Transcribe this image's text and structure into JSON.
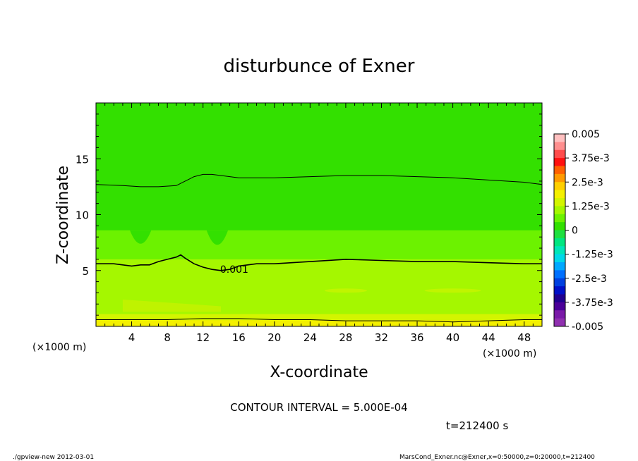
{
  "chart_data": {
    "type": "heatmap",
    "title": "disturbunce of Exner",
    "xlabel": "X-coordinate",
    "ylabel": "Z-coordinate",
    "x_unit": "(×1000 m)",
    "xlim": [
      0,
      50
    ],
    "ylim": [
      0,
      20
    ],
    "x_ticks": [
      4,
      8,
      12,
      16,
      20,
      24,
      28,
      32,
      36,
      40,
      44,
      48
    ],
    "y_ticks": [
      5,
      10,
      15
    ],
    "contour_labels": [
      {
        "text": "0.001",
        "x": 15.5,
        "z": 5.1
      }
    ],
    "contours": [
      {
        "level": "upper",
        "x": [
          0,
          3,
          5,
          7,
          9,
          9.5,
          10,
          10.5,
          11,
          12,
          13,
          14,
          16,
          20,
          24,
          28,
          32,
          36,
          40,
          44,
          48,
          50
        ],
        "z": [
          12.7,
          12.6,
          12.5,
          12.5,
          12.6,
          12.8,
          13.0,
          13.2,
          13.4,
          13.6,
          13.6,
          13.5,
          13.3,
          13.3,
          13.4,
          13.5,
          13.5,
          13.4,
          13.3,
          13.1,
          12.9,
          12.7
        ]
      },
      {
        "level": "0.001",
        "x": [
          0,
          2,
          4,
          5,
          6,
          7,
          8,
          9,
          9.5,
          10,
          11,
          12,
          13,
          14,
          15,
          16,
          17,
          18,
          20,
          24,
          28,
          32,
          36,
          40,
          44,
          48,
          50
        ],
        "z": [
          5.6,
          5.6,
          5.4,
          5.5,
          5.5,
          5.8,
          6.0,
          6.2,
          6.4,
          6.1,
          5.6,
          5.3,
          5.1,
          5.0,
          5.1,
          5.4,
          5.5,
          5.6,
          5.6,
          5.8,
          6.0,
          5.9,
          5.8,
          5.8,
          5.7,
          5.6,
          5.6
        ]
      },
      {
        "level": "lower",
        "x": [
          0,
          4,
          8,
          12,
          16,
          20,
          24,
          28,
          32,
          36,
          40,
          44,
          48,
          50
        ],
        "z": [
          0.6,
          0.6,
          0.6,
          0.7,
          0.7,
          0.6,
          0.6,
          0.5,
          0.5,
          0.5,
          0.4,
          0.5,
          0.6,
          0.6
        ]
      }
    ],
    "colorbar": {
      "labels": [
        "0.005",
        "3.75e-3",
        "2.5e-3",
        "1.25e-3",
        "0",
        "-1.25e-3",
        "-2.5e-3",
        "-3.75e-3",
        "-0.005"
      ],
      "colors": [
        "#ffc0c0",
        "#ff8f8f",
        "#ff4d4d",
        "#ff1010",
        "#ff6000",
        "#ff9a00",
        "#ffcf00",
        "#f4f000",
        "#d3f500",
        "#a5f700",
        "#6cf200",
        "#33e000",
        "#1ee040",
        "#00e680",
        "#00e6b8",
        "#00d8e8",
        "#00a8ff",
        "#0070ff",
        "#0040e0",
        "#0010c8",
        "#200090",
        "#4a0098",
        "#7a1aa8",
        "#9030b0"
      ]
    },
    "contour_interval_text": "CONTOUR INTERVAL = 5.000E-04",
    "time_text": "t=212400 s"
  },
  "footer": {
    "left": "./gpview-new  2012-03-01",
    "right": "MarsCond_Exner.nc@Exner,x=0:50000,z=0:20000,t=212400"
  }
}
